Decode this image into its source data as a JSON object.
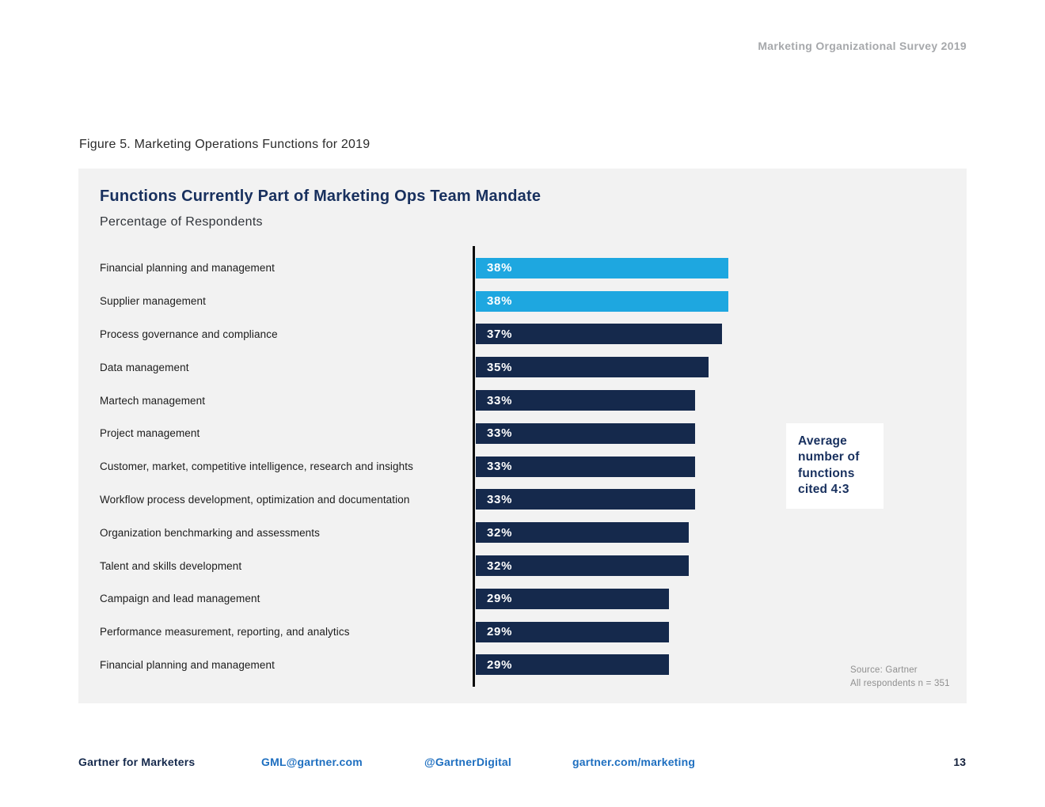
{
  "page": {
    "header": "Marketing Organizational Survey 2019",
    "figure_title": "Figure 5. Marketing Operations Functions for 2019",
    "page_number": "13"
  },
  "footer": {
    "brand": "Gartner for Marketers",
    "email": "GML@gartner.com",
    "twitter": "@GartnerDigital",
    "url": "gartner.com/marketing"
  },
  "colors": {
    "panel_background": "#f2f2f2",
    "navy_bar": "#15294c",
    "highlight_blue": "#1ea7e0",
    "title_navy": "#18305e",
    "link_blue": "#1e6fc0",
    "header_gray": "#a6a8ab"
  },
  "chart_data": {
    "type": "bar",
    "orientation": "horizontal",
    "title": "Functions Currently Part of Marketing Ops Team Mandate",
    "subtitle": "Percentage of Respondents",
    "categories": [
      "Financial planning and management",
      "Supplier management",
      "Process governance and compliance",
      "Data management",
      "Martech management",
      "Project management",
      "Customer, market, competitive intelligence, research and insights",
      "Workflow process development, optimization and documentation",
      "Organization benchmarking and assessments",
      "Talent and skills development",
      "Campaign and lead management",
      "Performance measurement, reporting, and analytics",
      "Financial planning and management"
    ],
    "values": [
      38,
      38,
      37,
      35,
      33,
      33,
      33,
      33,
      32,
      32,
      29,
      29,
      29
    ],
    "value_labels": [
      "38%",
      "38%",
      "37%",
      "35%",
      "33%",
      "33%",
      "33%",
      "33%",
      "32%",
      "32%",
      "29%",
      "29%",
      "29%"
    ],
    "bar_colors": [
      "#1ea7e0",
      "#1ea7e0",
      "#15294c",
      "#15294c",
      "#15294c",
      "#15294c",
      "#15294c",
      "#15294c",
      "#15294c",
      "#15294c",
      "#15294c",
      "#15294c",
      "#15294c"
    ],
    "xlim": [
      0,
      45
    ],
    "grid": false,
    "legend": "none",
    "annotation": "Average number of functions cited 4:3",
    "source": "Source: Gartner",
    "sample": "All respondents n = 351"
  }
}
